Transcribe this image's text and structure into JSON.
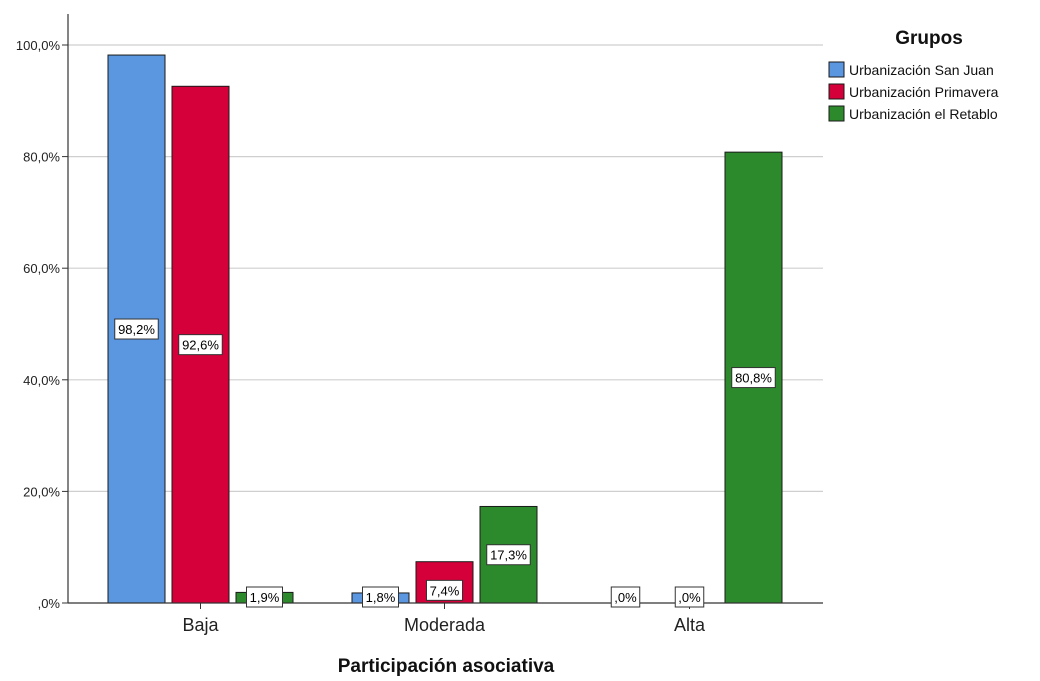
{
  "chart_data": {
    "type": "bar",
    "xlabel": "Participación asociativa",
    "ylabel": "",
    "categories": [
      "Baja",
      "Moderada",
      "Alta"
    ],
    "ylim": [
      0,
      100
    ],
    "yticks": [
      "100,0%",
      "80,0%",
      "60,0%",
      "40,0%",
      "20,0%",
      ",0%"
    ],
    "grid": true,
    "legend": {
      "title": "Grupos",
      "placement": "top-right"
    },
    "series": [
      {
        "name": "Urbanización San Juan",
        "color": "#5a97e0",
        "values": [
          98.2,
          1.8,
          0
        ],
        "labels": [
          "98,2%",
          "1,8%",
          ",0%"
        ]
      },
      {
        "name": "Urbanización Primavera",
        "color": "#d5003a",
        "values": [
          92.6,
          7.4,
          0
        ],
        "labels": [
          "92,6%",
          "7,4%",
          ",0%"
        ]
      },
      {
        "name": "Urbanización el Retablo",
        "color": "#2d8a2c",
        "values": [
          1.9,
          17.3,
          80.8
        ],
        "labels": [
          "1,9%",
          "17,3%",
          "80,8%"
        ]
      }
    ]
  }
}
